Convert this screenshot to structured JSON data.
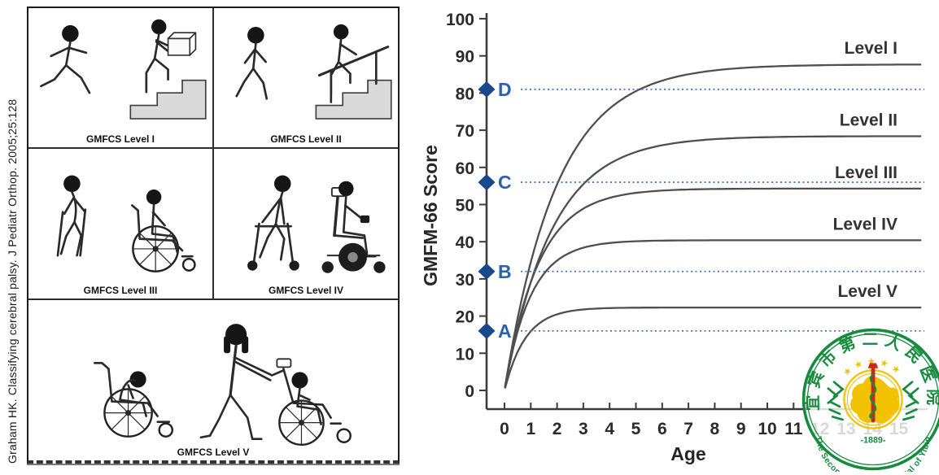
{
  "citation": "Graham HK. Classifying cerebral palsy. J Pediatr Orthop. 2005;25:128",
  "gmfcs_panel": {
    "cells": [
      {
        "caption": "GMFCS Level I",
        "depicts": "child-running-icon, child-climbing-stairs-carrying-box-icon"
      },
      {
        "caption": "GMFCS Level II",
        "depicts": "child-walking-icon, child-climbing-stairs-holding-rail-icon"
      },
      {
        "caption": "GMFCS Level III",
        "depicts": "child-with-crutches-icon, child-self-propelling-wheelchair-icon"
      },
      {
        "caption": "GMFCS Level IV",
        "depicts": "child-with-wheeled-walker-icon, child-in-powered-wheelchair-icon"
      },
      {
        "caption": "GMFCS Level V",
        "depicts": "child-slumped-in-wheelchair-icon, adult-pushing-child-in-wheelchair-icon"
      }
    ]
  },
  "chart_data": {
    "type": "line",
    "xlabel": "Age",
    "ylabel": "GMFM-66 Score",
    "xlim": [
      0,
      15
    ],
    "ylim": [
      0,
      100
    ],
    "grid": false,
    "legend_position": "labels-at-curve-ends-right",
    "x_ticks": [
      0,
      1,
      2,
      3,
      4,
      5,
      6,
      7,
      8,
      9,
      10,
      11,
      12,
      13,
      14,
      15
    ],
    "y_ticks": [
      0,
      10,
      20,
      30,
      40,
      50,
      60,
      70,
      80,
      90,
      100
    ],
    "ages": [
      0,
      1,
      2,
      3,
      4,
      5,
      6,
      7,
      8,
      9,
      10,
      11,
      12,
      13,
      14,
      15
    ],
    "series": [
      {
        "name": "Level I",
        "limit": 87.7,
        "tau": 2.0,
        "values": [
          0,
          34.5,
          55.4,
          68.1,
          75.8,
          80.5,
          83.3,
          85.1,
          86.1,
          86.7,
          87.1,
          87.3,
          87.5,
          87.6,
          87.6,
          87.7
        ]
      },
      {
        "name": "Level II",
        "limit": 68.4,
        "tau": 1.8,
        "values": [
          0,
          29.2,
          45.9,
          55.5,
          61.0,
          64.1,
          66.0,
          67.0,
          67.6,
          67.9,
          68.1,
          68.2,
          68.3,
          68.3,
          68.4,
          68.4
        ]
      },
      {
        "name": "Level III",
        "limit": 54.3,
        "tau": 1.3,
        "values": [
          0,
          29.1,
          42.7,
          48.9,
          51.8,
          53.1,
          53.8,
          54.1,
          54.2,
          54.2,
          54.3,
          54.3,
          54.3,
          54.3,
          54.3,
          54.3
        ]
      },
      {
        "name": "Level IV",
        "limit": 40.4,
        "tau": 1.0,
        "values": [
          0,
          25.5,
          34.9,
          38.4,
          39.7,
          40.1,
          40.3,
          40.4,
          40.4,
          40.4,
          40.4,
          40.4,
          40.4,
          40.4,
          40.4,
          40.4
        ]
      },
      {
        "name": "Level V",
        "limit": 22.3,
        "tau": 0.8,
        "values": [
          0,
          15.9,
          20.5,
          21.8,
          22.1,
          22.3,
          22.3,
          22.3,
          22.3,
          22.3,
          22.3,
          22.3,
          22.3,
          22.3,
          22.3,
          22.3
        ]
      }
    ],
    "reference_markers": [
      {
        "label": "D",
        "score": 81
      },
      {
        "label": "C",
        "score": 56
      },
      {
        "label": "B",
        "score": 32
      },
      {
        "label": "A",
        "score": 16
      }
    ],
    "curve_color": "#4f4f4f",
    "axis_color": "#3c3c3c",
    "ref_line_color": "#4878b8",
    "marker_color": "#17498c",
    "marker_label_color": "#2a62ae"
  },
  "logo": {
    "top_text": "宜宾市第二人民医院",
    "bottom_text": "The Second People's Hospital of Yibin",
    "year_text": "-1889-",
    "stars": "★★★★★",
    "ring_color": "#168a3d",
    "gold_color": "#f2c200",
    "staff_color": "#c8281c"
  }
}
